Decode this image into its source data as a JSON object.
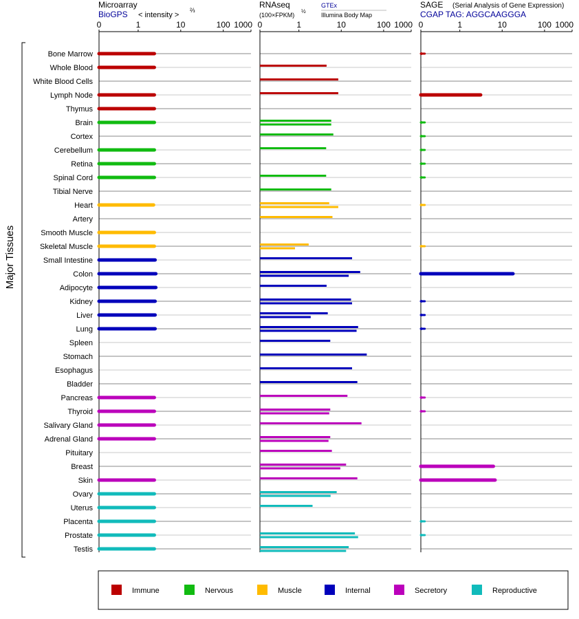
{
  "headers": {
    "microarray": {
      "title": "Microarray",
      "source": "BioGPS",
      "unit": "< intensity >",
      "unit_exp": "⅔"
    },
    "rnaseq": {
      "title": "RNAseq",
      "unit": "(100×FPKM)",
      "unit_exp": "½",
      "source_gtex": "GTEx",
      "source_illumina": "Illumina Body Map"
    },
    "sage": {
      "title": "SAGE",
      "subtitle": "(Serial Analysis of Gene Expression)",
      "tag": "CGAP TAG: AGGCAAGGGA"
    }
  },
  "axis_ticks": [
    "0",
    "1",
    "10",
    "100",
    "1000"
  ],
  "ylabel": "Major Tissues",
  "colors": {
    "Immune": "#bb0000",
    "Nervous": "#11bb11",
    "Muscle": "#ffbb00",
    "Internal": "#0000bb",
    "Secretory": "#bb00bb",
    "Reproductive": "#11bbbb"
  },
  "legend": [
    "Immune",
    "Nervous",
    "Muscle",
    "Internal",
    "Secretory",
    "Reproductive"
  ],
  "chart_data": {
    "type": "bar",
    "scale": "pseudo-log (0, 1, 10, 100, 1000)",
    "categories": [
      "Bone Marrow",
      "Whole Blood",
      "White Blood Cells",
      "Lymph Node",
      "Thymus",
      "Brain",
      "Cortex",
      "Cerebellum",
      "Retina",
      "Spinal Cord",
      "Tibial Nerve",
      "Heart",
      "Artery",
      "Smooth Muscle",
      "Skeletal Muscle",
      "Small Intestine",
      "Colon",
      "Adipocyte",
      "Kidney",
      "Liver",
      "Lung",
      "Spleen",
      "Stomach",
      "Esophagus",
      "Bladder",
      "Pancreas",
      "Thyroid",
      "Salivary Gland",
      "Adrenal Gland",
      "Pituitary",
      "Breast",
      "Skin",
      "Ovary",
      "Uterus",
      "Placenta",
      "Prostate",
      "Testis"
    ],
    "system": [
      "Immune",
      "Immune",
      "Immune",
      "Immune",
      "Immune",
      "Nervous",
      "Nervous",
      "Nervous",
      "Nervous",
      "Nervous",
      "Nervous",
      "Muscle",
      "Muscle",
      "Muscle",
      "Muscle",
      "Internal",
      "Internal",
      "Internal",
      "Internal",
      "Internal",
      "Internal",
      "Internal",
      "Internal",
      "Internal",
      "Internal",
      "Secretory",
      "Secretory",
      "Secretory",
      "Secretory",
      "Secretory",
      "Secretory",
      "Secretory",
      "Reproductive",
      "Reproductive",
      "Reproductive",
      "Reproductive",
      "Reproductive"
    ],
    "series": [
      {
        "name": "Microarray",
        "values": [
          2.4,
          2.4,
          null,
          2.4,
          2.4,
          2.4,
          null,
          2.4,
          2.4,
          2.4,
          null,
          2.3,
          null,
          2.4,
          2.4,
          2.5,
          2.6,
          2.6,
          2.5,
          2.5,
          2.5,
          null,
          null,
          null,
          null,
          2.4,
          2.4,
          2.4,
          2.4,
          null,
          null,
          2.4,
          2.4,
          2.4,
          2.4,
          2.4,
          2.4
        ]
      },
      {
        "name": "RNAseq GTEx",
        "values": [
          null,
          4.5,
          8.5,
          8.5,
          null,
          5.8,
          6.5,
          4.4,
          null,
          4.4,
          5.8,
          5.2,
          6.2,
          null,
          1.7,
          18,
          28,
          4.5,
          17,
          4.8,
          25,
          5.5,
          40,
          18,
          24,
          14,
          5.5,
          30,
          5.5,
          6.0,
          13,
          24,
          7.8,
          2.1,
          null,
          21,
          15
        ]
      },
      {
        "name": "RNAseq Illumina",
        "values": [
          null,
          null,
          null,
          null,
          null,
          5.8,
          null,
          null,
          null,
          null,
          null,
          8.5,
          null,
          null,
          0.9,
          null,
          15,
          null,
          18,
          1.9,
          23,
          null,
          null,
          null,
          null,
          null,
          5.2,
          null,
          5.0,
          null,
          9.5,
          null,
          5.6,
          null,
          null,
          25,
          13
        ]
      },
      {
        "name": "SAGE",
        "values": [
          0.1,
          null,
          null,
          3.1,
          null,
          0.1,
          0.1,
          0.1,
          0.1,
          0.1,
          null,
          0.1,
          null,
          null,
          0.1,
          null,
          18,
          null,
          0.1,
          0.1,
          0.1,
          null,
          null,
          null,
          null,
          0.1,
          0.1,
          null,
          null,
          null,
          6.2,
          6.8,
          null,
          null,
          0.1,
          0.1,
          null
        ]
      }
    ]
  }
}
